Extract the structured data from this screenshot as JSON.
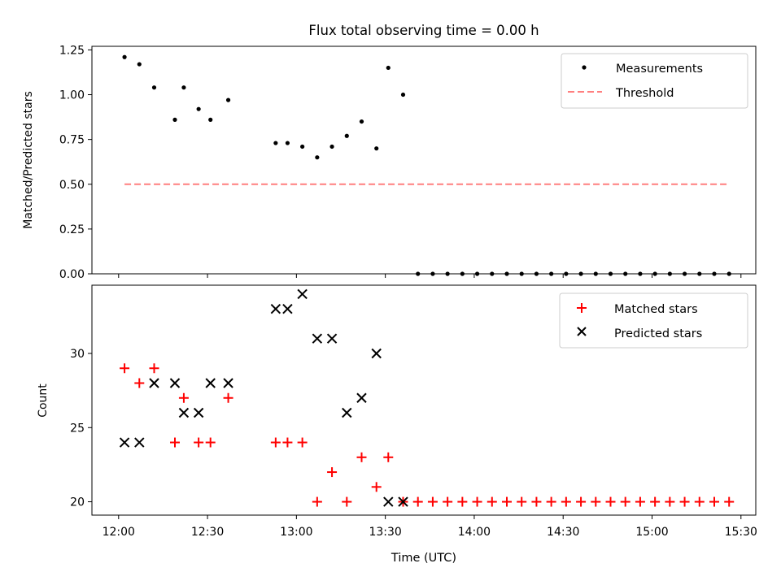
{
  "chart_data": [
    {
      "type": "scatter",
      "title": "Flux total observing time = 0.00 h",
      "xlabel": "",
      "ylabel": "Matched/Predicted stars",
      "ylim": [
        0,
        1.27
      ],
      "yticks": [
        0.0,
        0.25,
        0.5,
        0.75,
        1.0,
        1.25
      ],
      "ytick_labels": [
        "0.00",
        "0.25",
        "0.50",
        "0.75",
        "1.00",
        "1.25"
      ],
      "legend_position": "upper-right",
      "series": [
        {
          "name": "Measurements",
          "kind": "scatter",
          "marker": "dot",
          "color": "#000000",
          "x": [
            "12:02",
            "12:07",
            "12:12",
            "12:19",
            "12:22",
            "12:27",
            "12:31",
            "12:37",
            "12:53",
            "12:57",
            "13:02",
            "13:07",
            "13:12",
            "13:17",
            "13:22",
            "13:27",
            "13:31",
            "13:36",
            "13:41",
            "13:46",
            "13:51",
            "13:56",
            "14:01",
            "14:06",
            "14:11",
            "14:16",
            "14:21",
            "14:26",
            "14:31",
            "14:36",
            "14:41",
            "14:46",
            "14:51",
            "14:56",
            "15:01",
            "15:06",
            "15:11",
            "15:16",
            "15:21",
            "15:26"
          ],
          "y": [
            1.21,
            1.17,
            1.04,
            0.86,
            1.04,
            0.92,
            0.86,
            0.97,
            0.73,
            0.73,
            0.71,
            0.65,
            0.71,
            0.77,
            0.85,
            0.7,
            1.15,
            1.0,
            0,
            0,
            0,
            0,
            0,
            0,
            0,
            0,
            0,
            0,
            0,
            0,
            0,
            0,
            0,
            0,
            0,
            0,
            0,
            0,
            0,
            0
          ]
        },
        {
          "name": "Threshold",
          "kind": "line",
          "dash": "dashed",
          "color": "#ff7f7f",
          "x": [
            "12:02",
            "15:26"
          ],
          "y": [
            0.5,
            0.5
          ]
        }
      ]
    },
    {
      "type": "scatter",
      "title": "",
      "xlabel": "Time (UTC)",
      "ylabel": "Count",
      "ylim": [
        19.1,
        34.6
      ],
      "yticks": [
        20,
        25,
        30
      ],
      "ytick_labels": [
        "20",
        "25",
        "30"
      ],
      "xlim": [
        "11:51",
        "15:35"
      ],
      "xticks": [
        "12:00",
        "12:30",
        "13:00",
        "13:30",
        "14:00",
        "14:30",
        "15:00",
        "15:30"
      ],
      "xtick_labels": [
        "12:00",
        "12:30",
        "13:00",
        "13:30",
        "14:00",
        "14:30",
        "15:00",
        "15:30"
      ],
      "legend_position": "upper-right",
      "series": [
        {
          "name": "Matched stars",
          "kind": "scatter",
          "marker": "plus",
          "color": "#ff0000",
          "x": [
            "12:02",
            "12:07",
            "12:12",
            "12:19",
            "12:22",
            "12:27",
            "12:31",
            "12:37",
            "12:53",
            "12:57",
            "13:02",
            "13:07",
            "13:12",
            "13:17",
            "13:22",
            "13:27",
            "13:31",
            "13:36",
            "13:41",
            "13:46",
            "13:51",
            "13:56",
            "14:01",
            "14:06",
            "14:11",
            "14:16",
            "14:21",
            "14:26",
            "14:31",
            "14:36",
            "14:41",
            "14:46",
            "14:51",
            "14:56",
            "15:01",
            "15:06",
            "15:11",
            "15:16",
            "15:21",
            "15:26"
          ],
          "y": [
            29,
            28,
            29,
            24,
            27,
            24,
            24,
            27,
            24,
            24,
            24,
            20,
            22,
            20,
            23,
            21,
            23,
            20,
            20,
            20,
            20,
            20,
            20,
            20,
            20,
            20,
            20,
            20,
            20,
            20,
            20,
            20,
            20,
            20,
            20,
            20,
            20,
            20,
            20,
            20
          ]
        },
        {
          "name": "Predicted stars",
          "kind": "scatter",
          "marker": "x",
          "color": "#000000",
          "x": [
            "12:02",
            "12:07",
            "12:12",
            "12:19",
            "12:22",
            "12:27",
            "12:31",
            "12:37",
            "12:53",
            "12:57",
            "13:02",
            "13:07",
            "13:12",
            "13:17",
            "13:22",
            "13:27",
            "13:31",
            "13:36"
          ],
          "y": [
            24,
            24,
            28,
            28,
            26,
            26,
            28,
            28,
            33,
            33,
            34,
            31,
            31,
            26,
            27,
            30,
            20,
            20
          ]
        }
      ]
    }
  ]
}
